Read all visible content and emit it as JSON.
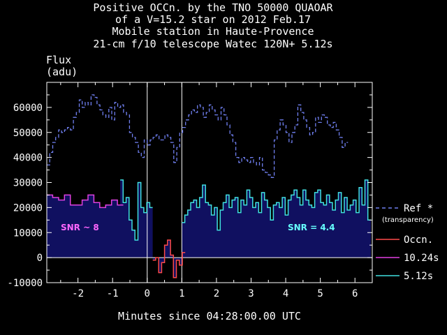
{
  "chart_data": {
    "type": "line",
    "title_lines": [
      "Positive OCCn. by the TNO 50000 QUAOAR",
      "of a V=15.2 star on 2012 Feb.17",
      "Mobile station in Haute-Provence",
      "21-cm f/10 telescope  Watec 120N+  5.12s"
    ],
    "ylabel_lines": [
      "Flux",
      "(adu)"
    ],
    "xlabel": "Minutes since 04:28:00.00 UTC",
    "xlim": [
      -2.9,
      6.5
    ],
    "ylim": [
      -10000,
      70000
    ],
    "x_ticks": [
      -2,
      -1,
      0,
      1,
      2,
      3,
      4,
      5,
      6
    ],
    "y_ticks": [
      -10000,
      0,
      10000,
      20000,
      30000,
      40000,
      50000,
      60000
    ],
    "x_tick_labels": [
      "-2",
      "-1",
      "0",
      "1",
      "2",
      "3",
      "4",
      "5",
      "6"
    ],
    "y_tick_labels": [
      "-10000",
      "0",
      "10000",
      "20000",
      "30000",
      "40000",
      "50000",
      "60000"
    ],
    "vertical_lines_x": [
      0,
      1
    ],
    "annotations": [
      {
        "text": "SNR ~ 8",
        "color": "#ff66ff"
      },
      {
        "text": "SNR = 4.4",
        "color": "#66ffff"
      }
    ],
    "legend_entries": [
      {
        "label": "Ref *",
        "sublabel": "(transparency)",
        "color": "#6f7ff0",
        "style": "dashed"
      },
      {
        "label": "Occn.",
        "color": "#ff4a4a",
        "style": "solid"
      },
      {
        "label": "10.24s",
        "color": "#e040e0",
        "style": "solid"
      },
      {
        "label": "5.12s",
        "color": "#40e0e0",
        "style": "solid"
      }
    ],
    "colors": {
      "background": "#000000",
      "text": "#ffffff",
      "fill": "#101060",
      "ref": "#6f7ff0",
      "occn": "#ff4a4a",
      "s1024": "#e040e0",
      "s512": "#40e0e0"
    },
    "series": [
      {
        "key": "ref",
        "x_start": -2.9,
        "x_step": 0.0853,
        "values": [
          37000,
          42000,
          46000,
          48000,
          51000,
          50000,
          51000,
          52000,
          51000,
          56000,
          58000,
          63000,
          60000,
          62000,
          61000,
          65000,
          64000,
          61000,
          59000,
          57000,
          56000,
          60000,
          55000,
          62000,
          60000,
          61000,
          58000,
          57000,
          50000,
          48000,
          46000,
          42000,
          40000,
          47000,
          45000,
          47000,
          48000,
          49000,
          47000,
          47000,
          49000,
          48000,
          46000,
          38000,
          44000,
          50000,
          52000,
          55000,
          57000,
          59000,
          58000,
          61000,
          60000,
          56000,
          58000,
          61000,
          59000,
          57000,
          55000,
          60000,
          57000,
          53000,
          49000,
          46000,
          40000,
          38000,
          40000,
          39000,
          38000,
          40000,
          38000,
          37000,
          40000,
          35000,
          34000,
          33000,
          32000,
          47000,
          51000,
          55000,
          53000,
          50000,
          46000,
          50000,
          53000,
          61000,
          58000,
          55000,
          52000,
          49000,
          50000,
          56000,
          54000,
          57000,
          56000,
          53000,
          52000,
          54000,
          51000,
          48000,
          44000,
          46000
        ]
      },
      {
        "key": "s1024",
        "x_start": -2.9,
        "x_step": 0.17,
        "values": [
          25000,
          24000,
          23000,
          25000,
          21000,
          21000,
          23000,
          25000,
          22000,
          20000,
          21000,
          23000,
          21000
        ]
      },
      {
        "key": "s512",
        "x_start": -0.78,
        "x_step": 0.0853,
        "values": [
          31000,
          22000,
          24000,
          15000,
          11000,
          7000,
          30000,
          20000,
          18000,
          22000,
          20000
        ]
      },
      {
        "key": "occn",
        "x_start": 0.16,
        "x_step": 0.0853,
        "values": [
          -1000,
          0,
          -6000,
          -2000,
          5000,
          7000,
          1000,
          -8000,
          -1000,
          -3000,
          2000
        ]
      },
      {
        "key": "s512",
        "x_start": 1.0,
        "x_step": 0.0853,
        "values": [
          14000,
          17000,
          19000,
          22000,
          23000,
          20000,
          24000,
          29000,
          22000,
          21000,
          17000,
          20000,
          11000,
          19000,
          22000,
          25000,
          20000,
          23000,
          24000,
          18000,
          23000,
          21000,
          27000,
          24000,
          20000,
          22000,
          18000,
          26000,
          23000,
          20000,
          15000,
          21000,
          22000,
          20000,
          24000,
          17000,
          23000,
          25000,
          27000,
          24000,
          21000,
          27000,
          23000,
          21000,
          20000,
          26000,
          27000,
          22000,
          21000,
          25000,
          22000,
          19000,
          23000,
          26000,
          18000,
          24000,
          19000,
          21000,
          23000,
          18000,
          28000,
          21000,
          31000,
          15000
        ]
      }
    ]
  }
}
